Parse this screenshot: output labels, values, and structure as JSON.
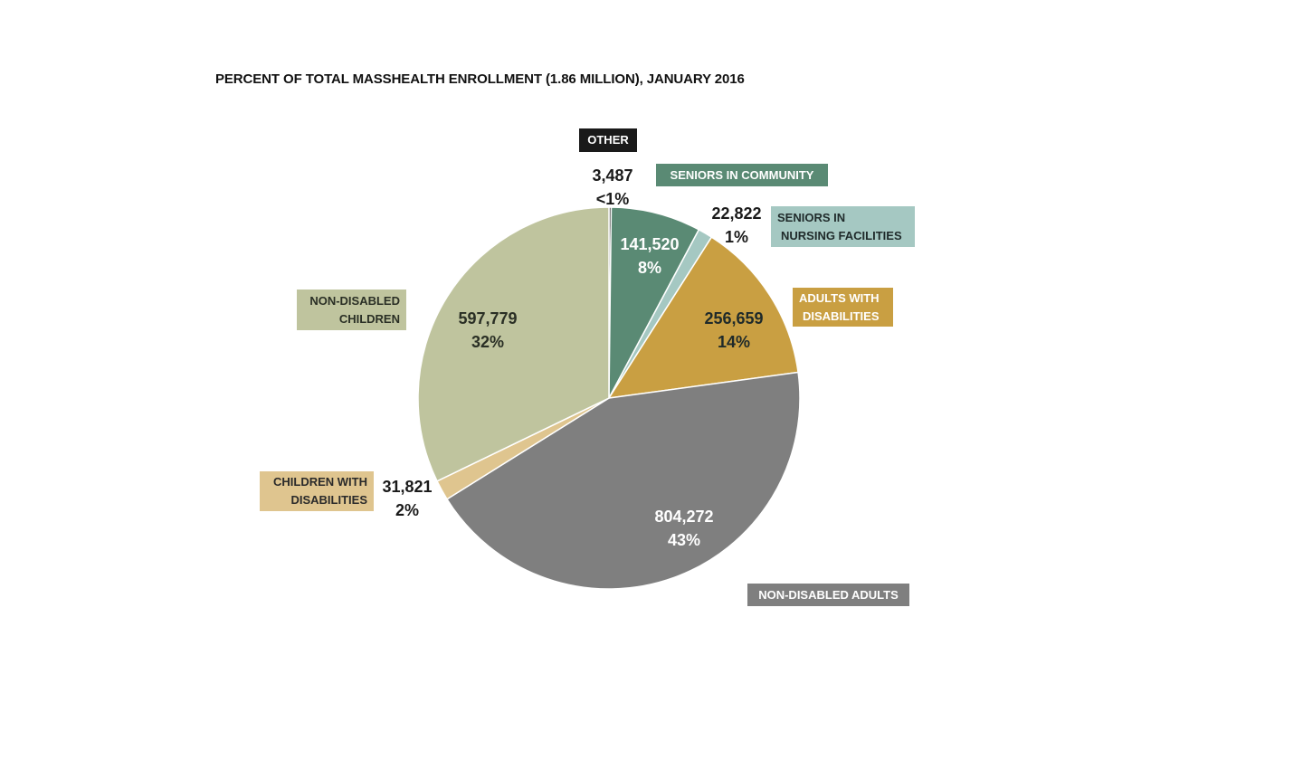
{
  "chart_data": {
    "type": "pie",
    "title": "PERCENT OF TOTAL MASSHEALTH ENROLLMENT (1.86 MILLION), JANUARY 2016",
    "slices": [
      {
        "key": "other",
        "label_lines": [
          "OTHER"
        ],
        "value": 3487,
        "value_label": "3,487",
        "percent_label": "<1%",
        "color": "#1a1a1a",
        "box_text_color": "#ffffff",
        "value_text_color": "#1a1a1a"
      },
      {
        "key": "seniors-community",
        "label_lines": [
          "SENIORS IN COMMUNITY"
        ],
        "value": 141520,
        "value_label": "141,520",
        "percent_label": "8%",
        "color": "#5a8a74",
        "box_text_color": "#ffffff",
        "value_text_color": "#ffffff"
      },
      {
        "key": "seniors-nursing",
        "label_lines": [
          "SENIORS IN",
          "NURSING FACILITIES"
        ],
        "value": 22822,
        "value_label": "22,822",
        "percent_label": "1%",
        "color": "#a5c8c2",
        "box_text_color": "#1f2a2a",
        "value_text_color": "#1a1a1a"
      },
      {
        "key": "adults-disabilities",
        "label_lines": [
          "ADULTS WITH",
          "DISABILITIES"
        ],
        "value": 256659,
        "value_label": "256,659",
        "percent_label": "14%",
        "color": "#c99f42",
        "box_text_color": "#ffffff",
        "value_text_color": "#1f2a2a"
      },
      {
        "key": "non-disabled-adults",
        "label_lines": [
          "NON-DISABLED ADULTS"
        ],
        "value": 804272,
        "value_label": "804,272",
        "percent_label": "43%",
        "color": "#7f7f7f",
        "box_text_color": "#ffffff",
        "value_text_color": "#ffffff"
      },
      {
        "key": "children-disabilities",
        "label_lines": [
          "CHILDREN WITH",
          "DISABILITIES"
        ],
        "value": 31821,
        "value_label": "31,821",
        "percent_label": "2%",
        "color": "#dfc58f",
        "box_text_color": "#2a2a2a",
        "value_text_color": "#1a1a1a"
      },
      {
        "key": "non-disabled-children",
        "label_lines": [
          "NON-DISABLED",
          "CHILDREN"
        ],
        "value": 597779,
        "value_label": "597,779",
        "percent_label": "32%",
        "color": "#bfc49e",
        "box_text_color": "#2a2f25",
        "value_text_color": "#2a2f25"
      }
    ]
  }
}
